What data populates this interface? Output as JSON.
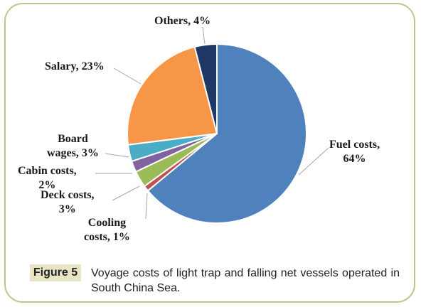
{
  "chart_data": {
    "type": "pie",
    "slices": [
      {
        "label": "Fuel costs",
        "value": 64,
        "percent_label": "64%",
        "color": "#4f81bd"
      },
      {
        "label": "Cooling costs",
        "value": 1,
        "percent_label": "1%",
        "color": "#c0504d"
      },
      {
        "label": "Deck costs",
        "value": 3,
        "percent_label": "3%",
        "color": "#9bbb59"
      },
      {
        "label": "Cabin costs",
        "value": 2,
        "percent_label": "2%",
        "color": "#8064a2"
      },
      {
        "label": "Board wages",
        "value": 3,
        "percent_label": "3%",
        "color": "#4bacc6"
      },
      {
        "label": "Salary",
        "value": 23,
        "percent_label": "23%",
        "color": "#f79646"
      },
      {
        "label": "Others",
        "value": 4,
        "percent_label": "4%",
        "color": "#1f3864"
      }
    ]
  },
  "labels": {
    "fuel": [
      "Fuel costs,",
      "64%"
    ],
    "cooling": [
      "Cooling",
      "costs, 1%"
    ],
    "deck": [
      "Deck costs,",
      "3%"
    ],
    "cabin": [
      "Cabin costs,",
      "2%"
    ],
    "board": [
      "Board",
      "wages, 3%"
    ],
    "salary": "Salary, 23%",
    "others": "Others, 4%"
  },
  "caption": {
    "tag": "Figure 5",
    "text": "Voyage costs of light trap and falling net vessels operated in South China Sea."
  }
}
